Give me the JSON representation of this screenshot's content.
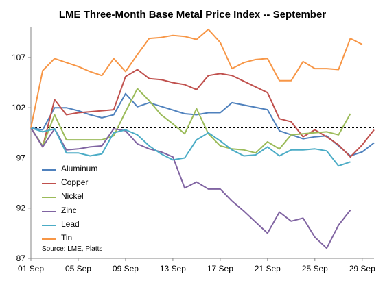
{
  "chart_data": {
    "type": "line",
    "title": "LME Three-Month Base Metal Price Index -- September",
    "source": "Source: LME, Platts",
    "xlabel": "",
    "ylabel": "",
    "x_tick_labels": [
      "01 Sep",
      "05 Sep",
      "09 Sep",
      "13 Sep",
      "17 Sep",
      "21 Sep",
      "25 Sep",
      "29 Sep"
    ],
    "y_tick_labels": [
      "87",
      "92",
      "97",
      "102",
      "107"
    ],
    "ylim": [
      87,
      110
    ],
    "xlim": [
      1,
      30
    ],
    "grid": false,
    "reference_line": 100,
    "legend_position": "left",
    "series": [
      {
        "name": "Aluminum",
        "color": "#4f81bd",
        "points": [
          [
            1,
            100
          ],
          [
            2,
            99.8
          ],
          [
            3,
            102
          ],
          [
            4,
            102
          ],
          [
            5,
            101.7
          ],
          [
            6,
            101.3
          ],
          [
            7,
            101
          ],
          [
            8,
            101.3
          ],
          [
            9,
            103.4
          ],
          [
            10,
            102.1
          ],
          [
            11,
            102.5
          ],
          [
            14,
            101.4
          ],
          [
            15,
            101.3
          ],
          [
            16,
            101.5
          ],
          [
            17,
            101.5
          ],
          [
            18,
            102.5
          ],
          [
            21,
            101.8
          ],
          [
            22,
            99.7
          ],
          [
            24,
            98.9
          ],
          [
            25,
            99.1
          ],
          [
            26,
            99.2
          ],
          [
            28,
            97.2
          ],
          [
            29,
            97.6
          ],
          [
            30,
            98.5
          ]
        ]
      },
      {
        "name": "Copper",
        "color": "#c0504d",
        "points": [
          [
            1,
            100
          ],
          [
            2,
            98.1
          ],
          [
            3,
            102.8
          ],
          [
            4,
            101.3
          ],
          [
            5,
            101.5
          ],
          [
            6,
            101.6
          ],
          [
            7,
            101.7
          ],
          [
            8,
            101.8
          ],
          [
            9,
            105.1
          ],
          [
            10,
            105.8
          ],
          [
            11,
            104.9
          ],
          [
            12,
            104.8
          ],
          [
            13,
            104.5
          ],
          [
            14,
            104.3
          ],
          [
            15,
            103.8
          ],
          [
            16,
            105.2
          ],
          [
            17,
            105.4
          ],
          [
            18,
            105.2
          ],
          [
            21,
            103.5
          ],
          [
            22,
            100.9
          ],
          [
            23,
            100.6
          ],
          [
            24,
            99.1
          ],
          [
            25,
            99.8
          ],
          [
            26,
            99.1
          ],
          [
            27,
            98.3
          ],
          [
            28,
            97.1
          ],
          [
            29,
            98.3
          ],
          [
            30,
            99.8
          ]
        ]
      },
      {
        "name": "Nickel",
        "color": "#9bbb59",
        "points": [
          [
            1,
            100
          ],
          [
            2,
            98.2
          ],
          [
            3,
            101.3
          ],
          [
            4,
            98.8
          ],
          [
            5,
            98.8
          ],
          [
            6,
            98.8
          ],
          [
            7,
            98.8
          ],
          [
            8,
            99.2
          ],
          [
            9,
            101.6
          ],
          [
            10,
            103.9
          ],
          [
            11,
            102.7
          ],
          [
            12,
            101.3
          ],
          [
            13,
            100.4
          ],
          [
            14,
            99.4
          ],
          [
            15,
            101.9
          ],
          [
            16,
            99.4
          ],
          [
            17,
            98.2
          ],
          [
            18,
            97.9
          ],
          [
            19,
            97.8
          ],
          [
            20,
            97.5
          ],
          [
            21,
            98.6
          ],
          [
            22,
            97.9
          ],
          [
            23,
            99.3
          ],
          [
            24,
            99.4
          ],
          [
            25,
            99.5
          ],
          [
            26,
            99.6
          ],
          [
            27,
            99.3
          ],
          [
            28,
            101.4
          ]
        ]
      },
      {
        "name": "Zinc",
        "color": "#8064a2",
        "points": [
          [
            1,
            100
          ],
          [
            2,
            98.1
          ],
          [
            3,
            99.9
          ],
          [
            4,
            97.8
          ],
          [
            5,
            97.9
          ],
          [
            6,
            98.1
          ],
          [
            7,
            98.2
          ],
          [
            8,
            99.9
          ],
          [
            9,
            99.7
          ],
          [
            10,
            98.4
          ],
          [
            11,
            97.9
          ],
          [
            12,
            97.6
          ],
          [
            13,
            97.1
          ],
          [
            14,
            94
          ],
          [
            15,
            94.6
          ],
          [
            16,
            93.9
          ],
          [
            17,
            93.9
          ],
          [
            18,
            92.7
          ],
          [
            19,
            91.7
          ],
          [
            20,
            90.6
          ],
          [
            21,
            89.5
          ],
          [
            22,
            91.6
          ],
          [
            23,
            90.7
          ],
          [
            24,
            91
          ],
          [
            25,
            89.1
          ],
          [
            26,
            88
          ],
          [
            27,
            90.3
          ],
          [
            28,
            91.8
          ]
        ]
      },
      {
        "name": "Lead",
        "color": "#4bacc6",
        "points": [
          [
            1,
            100
          ],
          [
            2,
            99.6
          ],
          [
            3,
            99.9
          ],
          [
            4,
            97.5
          ],
          [
            5,
            97.5
          ],
          [
            6,
            97.2
          ],
          [
            7,
            97.4
          ],
          [
            8,
            99.5
          ],
          [
            9,
            99.8
          ],
          [
            10,
            99.3
          ],
          [
            11,
            98.2
          ],
          [
            12,
            97.4
          ],
          [
            13,
            96.8
          ],
          [
            14,
            97
          ],
          [
            15,
            98.8
          ],
          [
            16,
            99.5
          ],
          [
            17,
            98.7
          ],
          [
            18,
            97.8
          ],
          [
            19,
            97.2
          ],
          [
            20,
            97.3
          ],
          [
            21,
            98.1
          ],
          [
            22,
            97.2
          ],
          [
            23,
            97.8
          ],
          [
            24,
            97.8
          ],
          [
            25,
            97.9
          ],
          [
            26,
            97.7
          ],
          [
            27,
            96.2
          ],
          [
            28,
            96.6
          ]
        ]
      },
      {
        "name": "Tin",
        "color": "#f79646",
        "points": [
          [
            1,
            100
          ],
          [
            2,
            105.7
          ],
          [
            3,
            106.9
          ],
          [
            4,
            106.5
          ],
          [
            5,
            106.1
          ],
          [
            6,
            105.6
          ],
          [
            7,
            105.2
          ],
          [
            8,
            106.9
          ],
          [
            9,
            105.6
          ],
          [
            10,
            107.3
          ],
          [
            11,
            108.9
          ],
          [
            12,
            109
          ],
          [
            13,
            109.2
          ],
          [
            14,
            109.1
          ],
          [
            15,
            108.8
          ],
          [
            16,
            109.8
          ],
          [
            17,
            108.5
          ],
          [
            18,
            105.9
          ],
          [
            19,
            106.5
          ],
          [
            20,
            106.8
          ],
          [
            21,
            106.9
          ],
          [
            22,
            104.7
          ],
          [
            23,
            104.7
          ],
          [
            24,
            106.6
          ],
          [
            25,
            105.9
          ],
          [
            26,
            105.9
          ],
          [
            27,
            105.8
          ],
          [
            28,
            108.9
          ],
          [
            29,
            108.3
          ]
        ]
      }
    ]
  }
}
